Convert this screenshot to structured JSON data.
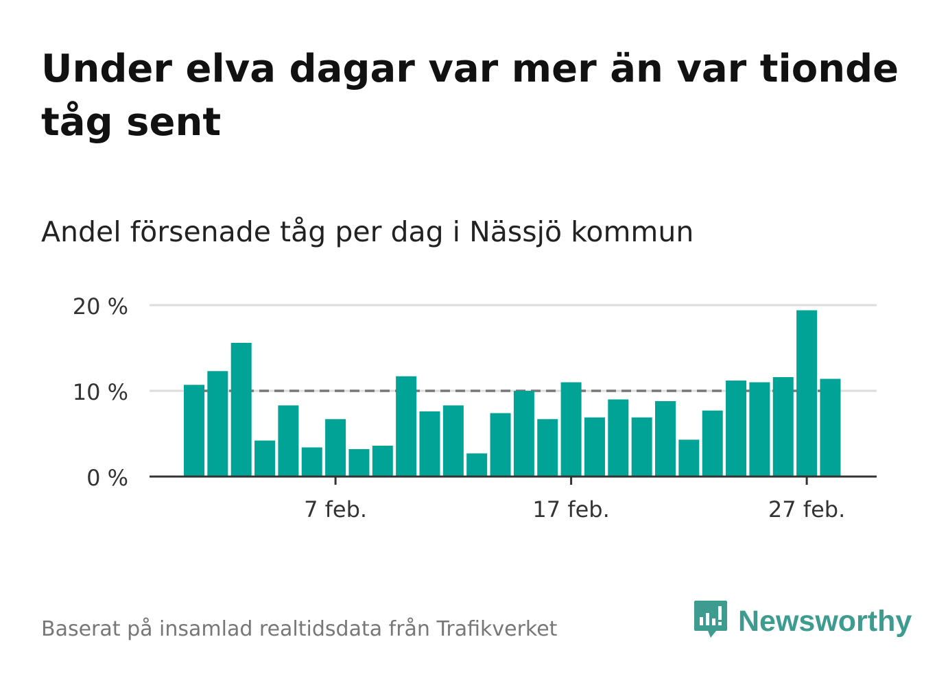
{
  "title": "Under elva dagar var mer än var tionde tåg sent",
  "subtitle": "Andel försenade tåg per dag i Nässjö kommun",
  "source": "Baserat på insamlad realtidsdata från Trafikverket",
  "brand": {
    "name": "Newsworthy",
    "icon": "newsworthy-logo-icon"
  },
  "colors": {
    "bar": "#00a396",
    "grid": "#dddddd",
    "reference": "#777777",
    "axis": "#333333",
    "brand": "#3e9b8f"
  },
  "chart_data": {
    "type": "bar",
    "title": "Andel försenade tåg per dag i Nässjö kommun",
    "xlabel": "",
    "ylabel": "",
    "x": [
      "2025-02-01",
      "2025-02-02",
      "2025-02-03",
      "2025-02-04",
      "2025-02-05",
      "2025-02-06",
      "2025-02-07",
      "2025-02-08",
      "2025-02-09",
      "2025-02-10",
      "2025-02-11",
      "2025-02-12",
      "2025-02-13",
      "2025-02-14",
      "2025-02-15",
      "2025-02-16",
      "2025-02-17",
      "2025-02-18",
      "2025-02-19",
      "2025-02-20",
      "2025-02-21",
      "2025-02-22",
      "2025-02-23",
      "2025-02-24",
      "2025-02-25",
      "2025-02-26",
      "2025-02-27",
      "2025-02-28"
    ],
    "values": [
      10.7,
      12.3,
      15.6,
      4.2,
      8.3,
      3.4,
      6.7,
      3.2,
      3.6,
      11.7,
      7.6,
      8.3,
      2.7,
      7.4,
      10.0,
      6.7,
      11.0,
      6.9,
      9.0,
      6.9,
      8.8,
      4.3,
      7.7,
      11.2,
      11.0,
      11.6,
      19.4,
      11.4
    ],
    "ylim": [
      0,
      20
    ],
    "yticks": [
      0,
      10,
      20
    ],
    "ytick_labels": [
      "0 %",
      "10 %",
      "20 %"
    ],
    "xtick_labels": [
      {
        "x": "2025-02-07",
        "label": "7 feb."
      },
      {
        "x": "2025-02-17",
        "label": "17 feb."
      },
      {
        "x": "2025-02-27",
        "label": "27 feb."
      }
    ],
    "reference_line": {
      "y": 10,
      "style": "dashed"
    },
    "grid": true,
    "legend": "none"
  }
}
